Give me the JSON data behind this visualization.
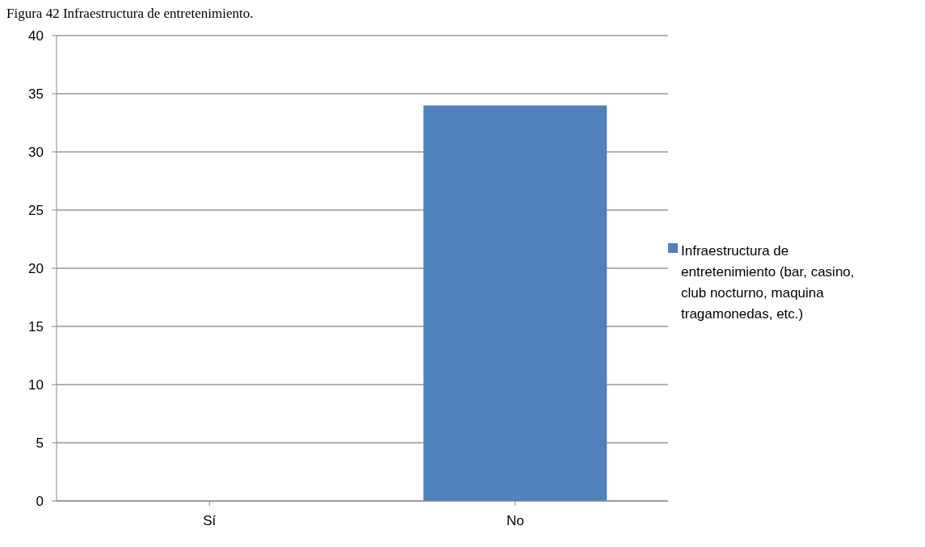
{
  "chart_data": {
    "type": "bar",
    "title": "Figura 42 Infraestructura de entretenimiento.",
    "categories": [
      "Sí",
      "No"
    ],
    "series": [
      {
        "name": "Infraestructura de entretenimiento (bar, casino, club nocturno, maquina tragamonedas, etc.)",
        "color": "#4f81bd",
        "values": [
          0,
          34
        ]
      }
    ],
    "ylim": [
      0,
      40
    ],
    "yticks": [
      0,
      5,
      10,
      15,
      20,
      25,
      30,
      35,
      40
    ],
    "grid": "y",
    "legend": "right"
  }
}
